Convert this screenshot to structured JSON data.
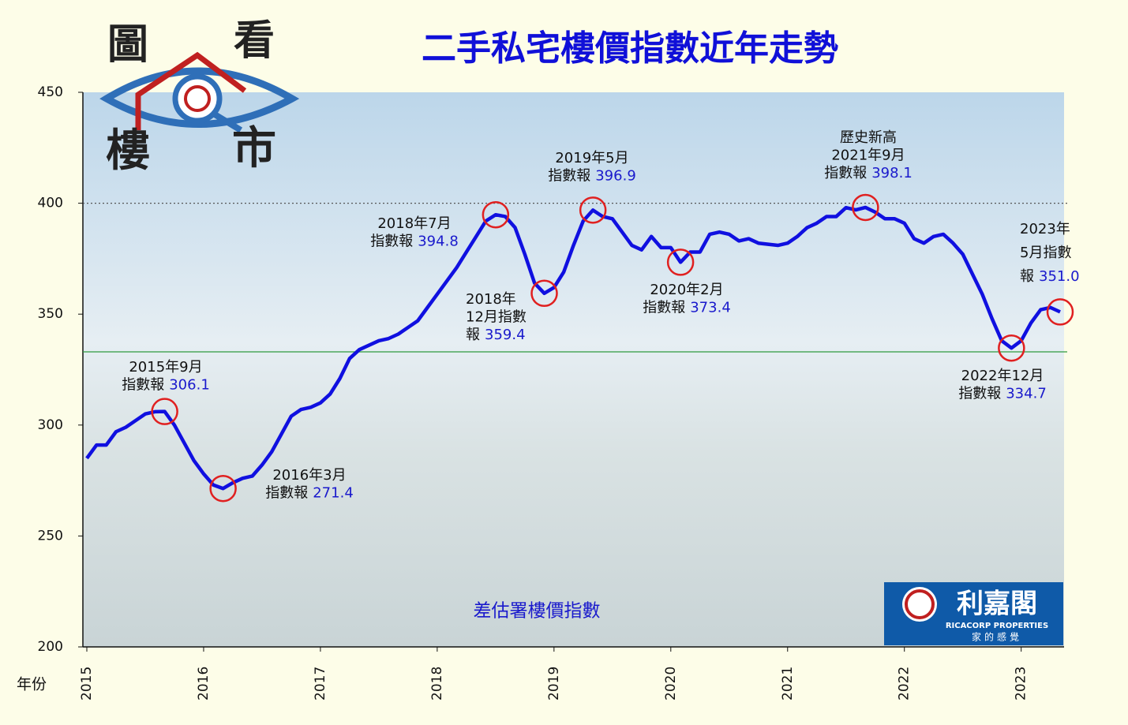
{
  "chart_data": {
    "type": "line",
    "title": "二手私宅樓價指數近年走勢",
    "logo": [
      "圖",
      "看",
      "樓",
      "市"
    ],
    "x_label": "年份",
    "source": "差估署樓價指數",
    "brand": {
      "name": "利嘉閣",
      "english": "RICACORP PROPERTIES",
      "slogan": "家的感覺"
    },
    "categories": [
      "2015",
      null,
      null,
      null,
      null,
      null,
      null,
      null,
      null,
      null,
      null,
      null,
      "2016",
      null,
      null,
      null,
      null,
      null,
      null,
      null,
      null,
      null,
      null,
      null,
      "2017",
      null,
      null,
      null,
      null,
      null,
      null,
      null,
      null,
      null,
      null,
      null,
      "2018",
      null,
      null,
      null,
      null,
      null,
      null,
      null,
      null,
      null,
      null,
      null,
      "2019",
      null,
      null,
      null,
      null,
      null,
      null,
      null,
      null,
      null,
      null,
      null,
      "2020",
      null,
      null,
      null,
      null,
      null,
      null,
      null,
      null,
      null,
      null,
      null,
      "2021",
      null,
      null,
      null,
      null,
      null,
      null,
      null,
      null,
      null,
      null,
      null,
      "2022",
      null,
      null,
      null,
      null,
      null,
      null,
      null,
      null,
      null,
      null,
      null,
      "2023",
      null,
      null,
      null,
      null
    ],
    "series": [
      {
        "name": "差估署樓價指數",
        "color": "#1010e0",
        "values": [
          285,
          291,
          291,
          297,
          299,
          302,
          305,
          306,
          306.1,
          300,
          292,
          284,
          278,
          273,
          271.4,
          274,
          276,
          277,
          282,
          288,
          296,
          304,
          307,
          308,
          310,
          314,
          321,
          330,
          334,
          336,
          338,
          339,
          341,
          344,
          347,
          353,
          359,
          365,
          371,
          378,
          385,
          392,
          394.8,
          394,
          389,
          377,
          364,
          359.4,
          362,
          369,
          381,
          392,
          396.9,
          394,
          393,
          387,
          381,
          379,
          385,
          380,
          380,
          373.4,
          378,
          378,
          386,
          387,
          386,
          383,
          384,
          382,
          381.5,
          381,
          382,
          385,
          389,
          391,
          394,
          394,
          398,
          397,
          398.1,
          396,
          393,
          393,
          391,
          384,
          382,
          385,
          386,
          382,
          377,
          368,
          359,
          348,
          338,
          334.7,
          338,
          346,
          352,
          353,
          351.0
        ],
        "value_labels": [
          null,
          null,
          null,
          null,
          null,
          null,
          null,
          null,
          "306.1",
          null,
          null,
          null,
          null,
          null,
          "271.4",
          null,
          null,
          null,
          null,
          null,
          null,
          null,
          null,
          null,
          null,
          null,
          null,
          null,
          null,
          null,
          null,
          null,
          null,
          null,
          null,
          null,
          null,
          null,
          null,
          null,
          null,
          null,
          "394.8",
          null,
          null,
          null,
          null,
          "359.4",
          null,
          null,
          null,
          null,
          "396.9",
          null,
          null,
          null,
          null,
          null,
          null,
          null,
          null,
          "373.4",
          null,
          null,
          null,
          null,
          null,
          null,
          null,
          null,
          null,
          null,
          null,
          null,
          null,
          null,
          null,
          null,
          null,
          null,
          "398.1",
          null,
          null,
          null,
          null,
          null,
          null,
          null,
          null,
          null,
          null,
          null,
          null,
          null,
          null,
          "334.7",
          null,
          null,
          null,
          null,
          "351.0"
        ],
        "notes": [
          null,
          null,
          null,
          null,
          null,
          null,
          null,
          null,
          [
            "2015年9月",
            "指數報"
          ],
          null,
          null,
          null,
          null,
          null,
          [
            "2016年3月",
            "指數報"
          ],
          null,
          null,
          null,
          null,
          null,
          null,
          null,
          null,
          null,
          null,
          null,
          null,
          null,
          null,
          null,
          null,
          null,
          null,
          null,
          null,
          null,
          null,
          null,
          null,
          null,
          null,
          null,
          [
            "2018年7月",
            "指數報"
          ],
          null,
          null,
          null,
          null,
          [
            "2018年",
            "12月指數",
            "報"
          ],
          null,
          null,
          null,
          null,
          [
            "2019年5月",
            "指數報"
          ],
          null,
          null,
          null,
          null,
          null,
          null,
          null,
          null,
          [
            "2020年2月",
            "指數報"
          ],
          null,
          null,
          null,
          null,
          null,
          null,
          null,
          null,
          null,
          null,
          null,
          null,
          null,
          null,
          null,
          null,
          null,
          null,
          [
            "歷史新高",
            "2021年9月",
            "指數報"
          ],
          null,
          null,
          null,
          null,
          null,
          null,
          null,
          null,
          null,
          null,
          null,
          null,
          null,
          null,
          [
            "2022年12月",
            "指數報"
          ],
          null,
          null,
          null,
          null,
          [
            "2023年",
            "5月指數",
            "報"
          ]
        ]
      }
    ],
    "ylim": [
      200,
      450
    ],
    "yticks": [
      200,
      250,
      300,
      350,
      400,
      450
    ],
    "reference_lines": [
      {
        "value": 400,
        "color": "#555555",
        "style": "dotted"
      },
      {
        "value": 333,
        "color": "#2e9a3e",
        "style": "solid"
      }
    ]
  }
}
